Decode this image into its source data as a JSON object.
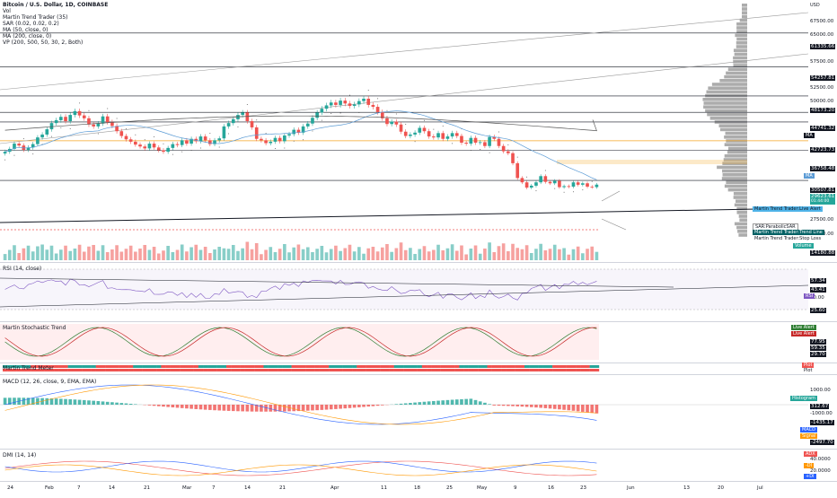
{
  "header": {
    "title": "Bitcoin / U.S. Dollar, 1D, COINBASE",
    "indicators": [
      "Vol",
      "Martin Trend Trader (35)",
      "SAR (0.02, 0.02, 0.2)",
      "MA (50, close, 0)",
      "MA (200, close, 0)",
      "VP (200, 500, 50, 30, 2, Both)"
    ]
  },
  "price_axis": {
    "currency": "USD",
    "labels": [
      "67500.00",
      "65000.00",
      "62500.00",
      "61335.66",
      "57500.00",
      "54257.81",
      "52500.00",
      "50000.00",
      "48173.20",
      "44741.32",
      "42723.73",
      "36758.48",
      "30507.81",
      "29623.61",
      "27500.00",
      "25000.00",
      "14180.88"
    ],
    "current_price": "29623.61",
    "current_sub": "01:44:00"
  },
  "overlay_tags": {
    "ma200": "MA",
    "ma50": "MA",
    "live_alert": "Martin Trend Trader:Live Alert",
    "sar": "SAR:ParabolicSAR",
    "trend_line": "Martin Trend Trader:Trend Line",
    "stop_loss": "Martin Trend Trader:Stop Loss",
    "volume": "Volume"
  },
  "panes": {
    "rsi": {
      "label": "RSI (14, close)",
      "axis": [
        "57.34",
        "43.41",
        "40.00",
        "25.60"
      ],
      "tag": "RSI"
    },
    "stoch": {
      "label": "Martin Stochastic Trend",
      "axis": [
        "Live Alert",
        "Live Alert",
        "77.95",
        "59.35",
        "29.70"
      ]
    },
    "trend_meter": {
      "label": "Martin Trend Meter",
      "axis": [
        "Plot",
        "Plot"
      ]
    },
    "macd": {
      "label": "MACD (12, 26, close, 9, EMA, EMA)",
      "axis": [
        "1000.00",
        "Histogram",
        "312.67",
        "-1000.00",
        "-1435.17",
        "MACD",
        "Signal",
        "-2497.70"
      ]
    },
    "dmi": {
      "label": "DMI (14, 14)",
      "axis": [
        "ADX",
        "40.0000",
        "-DI",
        "20.0000",
        "+DI"
      ]
    }
  },
  "time_axis": [
    "24",
    "Feb",
    "7",
    "14",
    "21",
    "Mar",
    "7",
    "14",
    "21",
    "Apr",
    "11",
    "18",
    "25",
    "May",
    "9",
    "16",
    "23",
    "Jun",
    "13",
    "20",
    "Jul"
  ],
  "colors": {
    "up": "#26a69a",
    "down": "#ef5350",
    "ma50": "#5b9bd5",
    "ma200": "#555555",
    "vp": "#9e9e9e",
    "rsi": "#7e57c2",
    "macd": "#2962ff",
    "signal": "#ff9800",
    "stoch_k": "#2e7d32",
    "stoch_d": "#c62828",
    "adx": "#ef5350",
    "plus_di": "#2962ff",
    "minus_di": "#ff9800"
  },
  "chart_data": {
    "type": "candlestick",
    "title": "Bitcoin / U.S. Dollar, 1D, COINBASE",
    "y_range": [
      14180.88,
      67500
    ],
    "closes": [
      36500,
      37100,
      38200,
      37800,
      36900,
      37400,
      38100,
      39500,
      40100,
      41200,
      42500,
      43100,
      43800,
      42900,
      44200,
      45000,
      44100,
      43500,
      42200,
      41800,
      42400,
      43900,
      42700,
      41900,
      40800,
      39800,
      39100,
      38600,
      38000,
      37600,
      37200,
      38200,
      37400,
      36800,
      36500,
      37300,
      38100,
      37900,
      38900,
      38200,
      39200,
      38700,
      39700,
      38900,
      38100,
      38900,
      39300,
      41800,
      42500,
      43300,
      44200,
      44700,
      42900,
      41600,
      39200,
      38900,
      38300,
      38600,
      39400,
      38700,
      39900,
      40200,
      41100,
      40500,
      41800,
      42400,
      43600,
      44700,
      45500,
      46200,
      46800,
      46300,
      47200,
      46600,
      46100,
      46400,
      47100,
      47600,
      46300,
      45900,
      44800,
      43500,
      42300,
      42800,
      42200,
      40700,
      39800,
      40100,
      40500,
      41500,
      40800,
      39700,
      39500,
      40400,
      39200,
      39700,
      40400,
      39800,
      38400,
      38200,
      39400,
      38400,
      38500,
      37700,
      39600,
      39200,
      37700,
      36600,
      36200,
      34100,
      31000,
      30100,
      29000,
      29400,
      30100,
      31400,
      30200,
      29900,
      30400,
      29100,
      29300,
      29200,
      30100,
      29600,
      29900,
      29200,
      29100,
      29623
    ]
  }
}
